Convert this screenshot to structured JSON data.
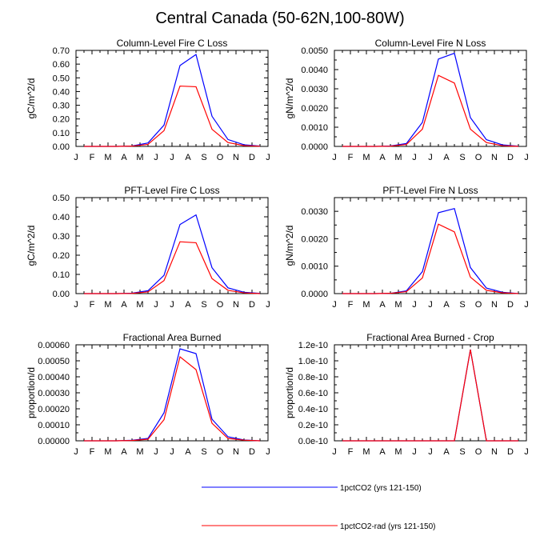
{
  "figure": {
    "title": "Central Canada (50-62N,100-80W)"
  },
  "month_labels": [
    "J",
    "F",
    "M",
    "A",
    "M",
    "J",
    "J",
    "A",
    "S",
    "O",
    "N",
    "D",
    "J"
  ],
  "legend": {
    "entries": [
      {
        "label": "1pctCO2 (yrs 121-150)",
        "color": "#0000ff"
      },
      {
        "label": "1pctCO2-rad (yrs 121-150)",
        "color": "#ff0000"
      }
    ]
  },
  "chart_data": [
    {
      "type": "line",
      "title": "Column-Level Fire C Loss",
      "ylabel": "gC/m^2/d",
      "ylim": [
        0,
        0.7
      ],
      "yticks": [
        0,
        0.1,
        0.2,
        0.3,
        0.4,
        0.5,
        0.6,
        0.7
      ],
      "ytick_labels": [
        "0.00",
        "0.10",
        "0.20",
        "0.30",
        "0.40",
        "0.50",
        "0.60",
        "0.70"
      ],
      "series": [
        {
          "name": "1pctCO2 (yrs 121-150)",
          "color": "#0000ff",
          "values": [
            0.0,
            0.0,
            0.0,
            0.003,
            0.025,
            0.155,
            0.59,
            0.67,
            0.22,
            0.05,
            0.012,
            0.002
          ]
        },
        {
          "name": "1pctCO2-rad (yrs 121-150)",
          "color": "#ff0000",
          "values": [
            0.0,
            0.0,
            0.0,
            0.002,
            0.015,
            0.115,
            0.44,
            0.435,
            0.125,
            0.028,
            0.006,
            0.001
          ]
        }
      ]
    },
    {
      "type": "line",
      "title": "Column-Level Fire N Loss",
      "ylabel": "gN/m^2/d",
      "ylim": [
        0,
        0.005
      ],
      "yticks": [
        0,
        0.001,
        0.002,
        0.003,
        0.004,
        0.005
      ],
      "ytick_labels": [
        "0.0000",
        "0.0010",
        "0.0020",
        "0.0030",
        "0.0040",
        "0.0050"
      ],
      "series": [
        {
          "name": "1pctCO2 (yrs 121-150)",
          "color": "#0000ff",
          "values": [
            0.0,
            0.0,
            0.0,
            2e-05,
            0.00015,
            0.00125,
            0.00455,
            0.00485,
            0.0015,
            0.00035,
            8e-05,
            1e-05
          ]
        },
        {
          "name": "1pctCO2-rad (yrs 121-150)",
          "color": "#ff0000",
          "values": [
            0.0,
            0.0,
            0.0,
            1e-05,
            0.0001,
            0.0009,
            0.0037,
            0.0033,
            0.0009,
            0.0002,
            4e-05,
            0.0
          ]
        }
      ]
    },
    {
      "type": "line",
      "title": "PFT-Level Fire C Loss",
      "ylabel": "gC/m^2/d",
      "ylim": [
        0,
        0.5
      ],
      "yticks": [
        0,
        0.1,
        0.2,
        0.3,
        0.4,
        0.5
      ],
      "ytick_labels": [
        "0.00",
        "0.10",
        "0.20",
        "0.30",
        "0.40",
        "0.50"
      ],
      "series": [
        {
          "name": "1pctCO2 (yrs 121-150)",
          "color": "#0000ff",
          "values": [
            0.0,
            0.0,
            0.0,
            0.002,
            0.015,
            0.095,
            0.36,
            0.41,
            0.135,
            0.03,
            0.007,
            0.001
          ]
        },
        {
          "name": "1pctCO2-rad (yrs 121-150)",
          "color": "#ff0000",
          "values": [
            0.0,
            0.0,
            0.0,
            0.001,
            0.009,
            0.068,
            0.27,
            0.265,
            0.078,
            0.017,
            0.004,
            0.0
          ]
        }
      ]
    },
    {
      "type": "line",
      "title": "PFT-Level Fire N Loss",
      "ylabel": "gN/m^2/d",
      "ylim": [
        0,
        0.0035
      ],
      "yticks": [
        0,
        0.001,
        0.002,
        0.003
      ],
      "ytick_labels": [
        "0.0000",
        "0.0010",
        "0.0020",
        "0.0030"
      ],
      "series": [
        {
          "name": "1pctCO2 (yrs 121-150)",
          "color": "#0000ff",
          "values": [
            0.0,
            0.0,
            0.0,
            1e-05,
            0.0001,
            0.0008,
            0.00295,
            0.0031,
            0.00095,
            0.0002,
            5e-05,
            0.0
          ]
        },
        {
          "name": "1pctCO2-rad (yrs 121-150)",
          "color": "#ff0000",
          "values": [
            0.0,
            0.0,
            0.0,
            1e-05,
            7e-05,
            0.00057,
            0.00253,
            0.00225,
            0.0006,
            0.00012,
            3e-05,
            0.0
          ]
        }
      ]
    },
    {
      "type": "line",
      "title": "Fractional Area Burned",
      "ylabel": "proportion/d",
      "ylim": [
        0,
        0.0006
      ],
      "yticks": [
        0,
        0.0001,
        0.0002,
        0.0003,
        0.0004,
        0.0005,
        0.0006
      ],
      "ytick_labels": [
        "0.00000",
        "0.00010",
        "0.00020",
        "0.00030",
        "0.00040",
        "0.00050",
        "0.00060"
      ],
      "series": [
        {
          "name": "1pctCO2 (yrs 121-150)",
          "color": "#0000ff",
          "values": [
            0.0,
            0.0,
            0.0,
            3e-06,
            1.5e-05,
            0.000175,
            0.000575,
            0.000545,
            0.000135,
            2.5e-05,
            5e-06,
            0.0
          ]
        },
        {
          "name": "1pctCO2-rad (yrs 121-150)",
          "color": "#ff0000",
          "values": [
            0.0,
            0.0,
            0.0,
            2e-06,
            1e-05,
            0.000132,
            0.000525,
            0.000445,
            0.00011,
            1.5e-05,
            4e-06,
            0.0
          ]
        }
      ]
    },
    {
      "type": "line",
      "title": "Fractional Area Burned - Crop",
      "ylabel": "proportion/d",
      "ylim": [
        0,
        1.2e-10
      ],
      "yticks": [
        0,
        2e-11,
        4e-11,
        6e-11,
        8e-11,
        1e-10,
        1.2e-10
      ],
      "ytick_labels": [
        "0.0e-10",
        "0.2e-10",
        "0.4e-10",
        "0.6e-10",
        "0.8e-10",
        "1.0e-10",
        "1.2e-10"
      ],
      "series": [
        {
          "name": "1pctCO2 (yrs 121-150)",
          "color": "#0000ff",
          "values": [
            0,
            0,
            0,
            0,
            0,
            0,
            0,
            0,
            1.14e-10,
            0,
            0,
            0
          ]
        },
        {
          "name": "1pctCO2-rad (yrs 121-150)",
          "color": "#ff0000",
          "values": [
            0,
            0,
            0,
            0,
            0,
            0,
            0,
            0,
            1.14e-10,
            0,
            0,
            0
          ]
        }
      ]
    }
  ]
}
